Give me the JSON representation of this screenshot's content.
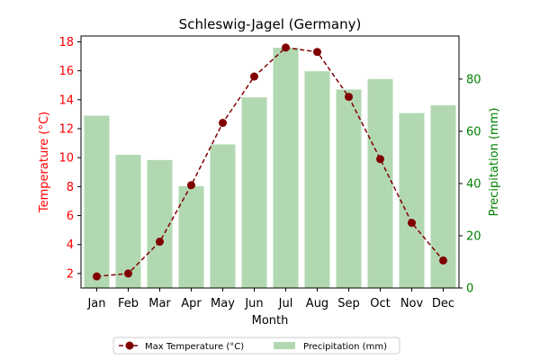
{
  "chart_data": {
    "type": "bar",
    "title": "Schleswig-Jagel (Germany)",
    "xlabel": "Month",
    "categories": [
      "Jan",
      "Feb",
      "Mar",
      "Apr",
      "May",
      "Jun",
      "Jul",
      "Aug",
      "Sep",
      "Oct",
      "Nov",
      "Dec"
    ],
    "y_left": {
      "label": "Temperature (°C)",
      "range": [
        1.0,
        18.4
      ],
      "ticks": [
        "2",
        "4",
        "6",
        "8",
        "10",
        "12",
        "14",
        "16",
        "18"
      ],
      "color": "#ff0000"
    },
    "y_right": {
      "label": "Precipitation (mm)",
      "range": [
        0,
        96.5
      ],
      "ticks": [
        "0",
        "20",
        "40",
        "60",
        "80"
      ],
      "color": "#008000"
    },
    "series": [
      {
        "name": "Max Temperature (°C)",
        "kind": "line",
        "axis": "left",
        "color": "#800000",
        "values": [
          1.8,
          2.0,
          4.2,
          8.1,
          12.4,
          15.6,
          17.6,
          17.3,
          14.2,
          9.9,
          5.5,
          2.9
        ]
      },
      {
        "name": "Precipitation (mm)",
        "kind": "bar",
        "axis": "right",
        "color": "#b2d8b2",
        "values": [
          66,
          51,
          49,
          39,
          55,
          73,
          92,
          83,
          76,
          80,
          67,
          70
        ]
      }
    ],
    "grid": false,
    "legend": "bottom-center"
  }
}
